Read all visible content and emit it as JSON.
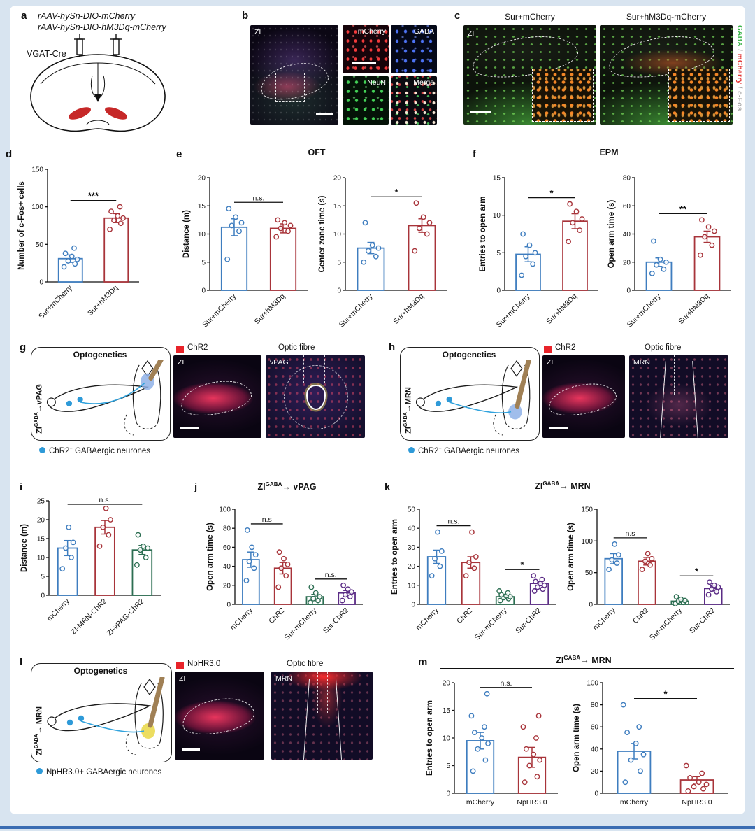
{
  "colors": {
    "blue": "#3e7dbf",
    "red": "#a8343a",
    "green": "#2c6e52",
    "purple": "#5b2c86",
    "chr2_red": "#e8232a",
    "neuron_blue": "#2e9ad8",
    "page_bg": "#d8e4f0"
  },
  "panels": {
    "a": {
      "label": "a",
      "virus1": "rAAV-hySn-DIO-mCherry",
      "virus2": "rAAV-hySn-DIO-hM3Dq-mCherry",
      "mouse_line": "VGAT-Cre"
    },
    "b": {
      "label": "b",
      "img_main": "ZI",
      "img_tl": "mCherry",
      "img_tr": "GABA",
      "img_bl": "NeuN",
      "img_br": "Merge"
    },
    "c": {
      "label": "c",
      "title_left": "Sur+mCherry",
      "title_right": "Sur+hM3Dq-mCherry",
      "zi": "ZI",
      "side_gaba": "GABA",
      "side_sep1": " / ",
      "side_mcherry": "mCherry",
      "side_sep2": " / ",
      "side_cfos": "c-Fos"
    },
    "d": {
      "label": "d"
    },
    "e": {
      "label": "e",
      "title": "OFT"
    },
    "f": {
      "label": "f",
      "title": "EPM"
    },
    "g": {
      "label": "g",
      "title": "Optogenetics",
      "path_pre": "ZI",
      "path_sup": "GABA",
      "path_post": "→vPAG",
      "chr2": "ChR2",
      "optic": "Optic fibre",
      "img1": "ZI",
      "img2": "vPAG",
      "leg_pre": "ChR2",
      "leg_sup": "+",
      "leg_post": " GABAergic neurones"
    },
    "h": {
      "label": "h",
      "title": "Optogenetics",
      "path_pre": "ZI",
      "path_sup": "GABA",
      "path_post": "→MRN",
      "chr2": "ChR2",
      "optic": "Optic fibre",
      "img1": "ZI",
      "img2": "MRN",
      "leg_pre": "ChR2",
      "leg_sup": "+",
      "leg_post": " GABAergic neurones"
    },
    "i": {
      "label": "i"
    },
    "j": {
      "label": "j",
      "title_pre": "ZI",
      "title_sup": "GABA",
      "title_post": "→ vPAG"
    },
    "k": {
      "label": "k",
      "title_pre": "ZI",
      "title_sup": "GABA",
      "title_post": "→ MRN"
    },
    "l": {
      "label": "l",
      "title": "Optogenetics",
      "path_pre": "ZI",
      "path_sup": "GABA",
      "path_post": "→ MRN",
      "nphr": "NpHR3.0",
      "optic": "Optic fibre",
      "img1": "ZI",
      "img2": "MRN",
      "legend": "NpHR3.0+ GABAergic neurones"
    },
    "m": {
      "label": "m",
      "title_pre": "ZI",
      "title_sup": "GABA",
      "title_post": "→ MRN"
    }
  },
  "chart_data": [
    {
      "id": "d",
      "type": "bar",
      "ylabel": "Number of c-Fos+ cells",
      "ylim": [
        0,
        150
      ],
      "yticks": [
        0,
        50,
        100,
        150
      ],
      "categories": [
        "Sur+mCherry",
        "Sur+hM3Dq"
      ],
      "values": [
        31,
        85
      ],
      "errors": [
        5,
        6
      ],
      "points": [
        [
          20,
          24,
          28,
          30,
          34,
          38,
          45
        ],
        [
          70,
          78,
          82,
          85,
          88,
          94,
          100
        ]
      ],
      "colors": [
        "blue",
        "red"
      ],
      "sig": [
        {
          "a": 0,
          "b": 1,
          "label": "***"
        }
      ],
      "ml": 46,
      "mb": 68
    },
    {
      "id": "e1",
      "type": "bar",
      "ylabel": "Distance (m)",
      "ylim": [
        0,
        20
      ],
      "yticks": [
        0,
        5,
        10,
        15,
        20
      ],
      "categories": [
        "Sur+mCherry",
        "Sur+hM3Dq"
      ],
      "values": [
        11.2,
        11
      ],
      "errors": [
        1.5,
        0.8
      ],
      "points": [
        [
          5.5,
          10.5,
          11.5,
          12,
          13,
          14.5
        ],
        [
          9.5,
          10.5,
          11,
          11.5,
          12,
          12.5
        ]
      ],
      "colors": [
        "blue",
        "red"
      ],
      "sig": [
        {
          "a": 0,
          "b": 1,
          "label": "n.s."
        }
      ],
      "ml": 42,
      "mb": 68
    },
    {
      "id": "e2",
      "type": "bar",
      "ylabel": "Center zone time (s)",
      "ylim": [
        0,
        20
      ],
      "yticks": [
        0,
        5,
        10,
        15,
        20
      ],
      "categories": [
        "Sur+mCherry",
        "Sur+hM3Dq"
      ],
      "values": [
        7.5,
        11.5
      ],
      "errors": [
        1,
        1.2
      ],
      "points": [
        [
          5,
          6,
          7,
          7.5,
          8,
          12
        ],
        [
          7,
          10,
          11,
          12,
          13,
          15.5
        ]
      ],
      "colors": [
        "blue",
        "red"
      ],
      "sig": [
        {
          "a": 0,
          "b": 1,
          "label": "*"
        }
      ],
      "ml": 42,
      "mb": 68
    },
    {
      "id": "f1",
      "type": "bar",
      "ylabel": "Entries to open arm",
      "ylim": [
        0,
        15
      ],
      "yticks": [
        0,
        5,
        10,
        15
      ],
      "categories": [
        "Sur+mCherry",
        "Sur+hM3Dq"
      ],
      "values": [
        4.8,
        9.2
      ],
      "errors": [
        1,
        1
      ],
      "points": [
        [
          2,
          3.5,
          4.5,
          5,
          6,
          7.5
        ],
        [
          6.5,
          8,
          9,
          9.5,
          10.5,
          11.5
        ]
      ],
      "colors": [
        "blue",
        "red"
      ],
      "sig": [
        {
          "a": 0,
          "b": 1,
          "label": "*"
        }
      ],
      "ml": 40,
      "mb": 68
    },
    {
      "id": "f2",
      "type": "bar",
      "ylabel": "Open arm time (s)",
      "ylim": [
        0,
        80
      ],
      "yticks": [
        0,
        20,
        40,
        60,
        80
      ],
      "categories": [
        "Sur+mCherry",
        "Sur+hM3Dq"
      ],
      "values": [
        20,
        38
      ],
      "errors": [
        3,
        4
      ],
      "points": [
        [
          12,
          15,
          18,
          20,
          22,
          35
        ],
        [
          25,
          32,
          38,
          42,
          45,
          50
        ]
      ],
      "colors": [
        "blue",
        "red"
      ],
      "sig": [
        {
          "a": 0,
          "b": 1,
          "label": "**"
        }
      ],
      "ml": 42,
      "mb": 68
    },
    {
      "id": "i",
      "type": "bar",
      "ylabel": "Distance (m)",
      "ylim": [
        0,
        25
      ],
      "yticks": [
        0,
        5,
        10,
        15,
        20,
        25
      ],
      "categories": [
        "mCherry",
        "ZI-MRN-ChR2",
        "ZI-vPAG-ChR2"
      ],
      "values": [
        12.5,
        18,
        12
      ],
      "errors": [
        2,
        1.8,
        1.2
      ],
      "points": [
        [
          7,
          10,
          12.5,
          14,
          18
        ],
        [
          13,
          16,
          18,
          20,
          23
        ],
        [
          8,
          10,
          12,
          12.5,
          13,
          16
        ]
      ],
      "colors": [
        "blue",
        "red",
        "green"
      ],
      "sig": [
        {
          "a": 0,
          "b": 2,
          "label": "n.s."
        }
      ],
      "ml": 44,
      "mb": 84
    },
    {
      "id": "j",
      "type": "bar",
      "ylabel": "Open arm time (s)",
      "ylim": [
        0,
        100
      ],
      "yticks": [
        0,
        20,
        40,
        60,
        80,
        100
      ],
      "categories": [
        "mCherry",
        "ChR2",
        "Sur-mCherry",
        "Sur-ChR2"
      ],
      "values": [
        47,
        38,
        8,
        12
      ],
      "errors": [
        8,
        6,
        2.5,
        2.5
      ],
      "points": [
        [
          25,
          38,
          45,
          52,
          60,
          78
        ],
        [
          18,
          30,
          38,
          42,
          48,
          55
        ],
        [
          2,
          4,
          6,
          8,
          12,
          18
        ],
        [
          4,
          8,
          10,
          13,
          16,
          20
        ]
      ],
      "colors": [
        "blue",
        "red",
        "green",
        "purple"
      ],
      "sig": [
        {
          "a": 0,
          "b": 1,
          "label": "n.s"
        },
        {
          "a": 2,
          "b": 3,
          "label": "n.s."
        }
      ],
      "ml": 44,
      "mb": 72
    },
    {
      "id": "k1",
      "type": "bar",
      "ylabel": "Entries to open arm",
      "ylim": [
        0,
        50
      ],
      "yticks": [
        0,
        10,
        20,
        30,
        40,
        50
      ],
      "categories": [
        "mCherry",
        "ChR2",
        "Sur-mCherry",
        "Sur-ChR2"
      ],
      "values": [
        25,
        22,
        4,
        11
      ],
      "errors": [
        3.5,
        3,
        0.8,
        1.2
      ],
      "points": [
        [
          15,
          20,
          24,
          28,
          38
        ],
        [
          15,
          19,
          22,
          25,
          38
        ],
        [
          2,
          3,
          3.5,
          4,
          4.5,
          5,
          6,
          7
        ],
        [
          7,
          8,
          9,
          10,
          11,
          12,
          13,
          15
        ]
      ],
      "colors": [
        "blue",
        "red",
        "green",
        "purple"
      ],
      "sig": [
        {
          "a": 0,
          "b": 1,
          "label": "n.s."
        },
        {
          "a": 2,
          "b": 3,
          "label": "*"
        }
      ],
      "ml": 44,
      "mb": 72
    },
    {
      "id": "k2",
      "type": "bar",
      "ylabel": "Open arm time (s)",
      "ylim": [
        0,
        150
      ],
      "yticks": [
        0,
        50,
        100,
        150
      ],
      "categories": [
        "mCherry",
        "ChR2",
        "Sur-mCherry",
        "Sur-ChR2"
      ],
      "values": [
        72,
        68,
        5,
        25
      ],
      "errors": [
        8,
        6,
        2,
        4
      ],
      "points": [
        [
          55,
          65,
          70,
          78,
          95
        ],
        [
          55,
          62,
          68,
          72,
          80
        ],
        [
          1,
          3,
          5,
          6,
          8,
          12
        ],
        [
          15,
          20,
          24,
          27,
          30,
          35
        ]
      ],
      "colors": [
        "blue",
        "red",
        "green",
        "purple"
      ],
      "sig": [
        {
          "a": 0,
          "b": 1,
          "label": "n.s"
        },
        {
          "a": 2,
          "b": 3,
          "label": "*"
        }
      ],
      "ml": 46,
      "mb": 72
    },
    {
      "id": "m1",
      "type": "bar",
      "ylabel": "Entries to open arm",
      "ylim": [
        0,
        20
      ],
      "yticks": [
        0,
        5,
        10,
        15,
        20
      ],
      "categories": [
        "mCherry",
        "NpHR3.0"
      ],
      "values": [
        9.5,
        6.5
      ],
      "errors": [
        1.5,
        1.8
      ],
      "points": [
        [
          4,
          6,
          8,
          9,
          10,
          11,
          12,
          14,
          18
        ],
        [
          2,
          3,
          5,
          6,
          7,
          8,
          10,
          12,
          14
        ]
      ],
      "colors": [
        "blue",
        "red"
      ],
      "sig": [
        {
          "a": 0,
          "b": 1,
          "label": "n.s."
        }
      ],
      "ml": 44,
      "mb": 26,
      "horizontal_labels": true
    },
    {
      "id": "m2",
      "type": "bar",
      "ylabel": "Open arm time (s)",
      "ylim": [
        0,
        100
      ],
      "yticks": [
        0,
        20,
        40,
        60,
        80,
        100
      ],
      "categories": [
        "mCherry",
        "NpHR3.0"
      ],
      "values": [
        38,
        12
      ],
      "errors": [
        7,
        3
      ],
      "points": [
        [
          10,
          20,
          30,
          35,
          45,
          55,
          60,
          80
        ],
        [
          2,
          4,
          6,
          8,
          10,
          14,
          18,
          25
        ]
      ],
      "colors": [
        "blue",
        "red"
      ],
      "sig": [
        {
          "a": 0,
          "b": 1,
          "label": "*"
        }
      ],
      "ml": 46,
      "mb": 26,
      "horizontal_labels": true
    }
  ]
}
